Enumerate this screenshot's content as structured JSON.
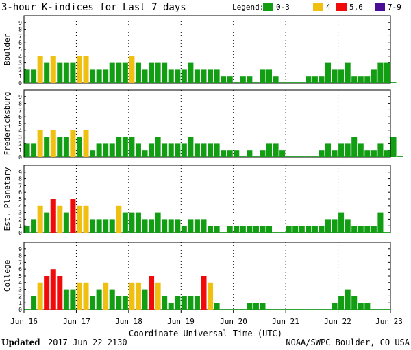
{
  "header": {
    "title": "3-hour K-indices for Last 7 days",
    "legend_label": "Legend:",
    "legend": [
      {
        "label": "0-3",
        "color": "#129e12"
      },
      {
        "label": "4",
        "color": "#f0c010"
      },
      {
        "label": "5,6",
        "color": "#f00a0a"
      },
      {
        "label": "7-9",
        "color": "#4b0c96"
      }
    ]
  },
  "footer": {
    "updated_label": "Updated",
    "updated_value": "2017 Jun 22 2130",
    "credit": "NOAA/SWPC Boulder, CO USA"
  },
  "chart_data": [
    {
      "type": "bar",
      "ylabel": "Boulder",
      "ylim": [
        0,
        9
      ],
      "values": [
        2,
        2,
        4,
        3,
        4,
        3,
        3,
        3,
        4,
        4,
        2,
        2,
        2,
        3,
        3,
        3,
        4,
        3,
        2,
        3,
        3,
        3,
        2,
        2,
        2,
        3,
        2,
        2,
        2,
        2,
        1,
        1,
        0,
        1,
        1,
        0,
        2,
        2,
        1,
        0,
        0,
        0,
        0,
        1,
        1,
        1,
        3,
        2,
        2,
        3,
        1,
        1,
        1,
        2,
        3,
        3,
        0
      ]
    },
    {
      "type": "bar",
      "ylabel": "Fredericksburg",
      "ylim": [
        0,
        9
      ],
      "values": [
        2,
        2,
        4,
        3,
        4,
        3,
        3,
        4,
        3,
        4,
        1,
        2,
        2,
        2,
        3,
        3,
        3,
        2,
        1,
        2,
        3,
        2,
        2,
        2,
        2,
        3,
        2,
        2,
        2,
        2,
        1,
        1,
        1,
        0,
        1,
        0,
        1,
        2,
        2,
        1,
        0,
        0,
        0,
        0,
        0,
        1,
        2,
        1,
        2,
        2,
        3,
        2,
        1,
        1,
        2,
        1,
        3,
        0
      ]
    },
    {
      "type": "bar",
      "ylabel": "Est. Planetary",
      "ylim": [
        0,
        9
      ],
      "values": [
        1,
        2,
        4,
        3,
        5,
        4,
        3,
        5,
        4,
        4,
        2,
        2,
        2,
        2,
        4,
        3,
        3,
        3,
        2,
        2,
        3,
        2,
        2,
        2,
        1,
        2,
        2,
        2,
        1,
        1,
        0,
        1,
        1,
        1,
        1,
        1,
        1,
        1,
        0,
        0,
        1,
        1,
        1,
        1,
        1,
        1,
        2,
        2,
        3,
        2,
        1,
        1,
        1,
        1,
        3,
        0
      ]
    },
    {
      "type": "bar",
      "ylabel": "College",
      "ylim": [
        0,
        9
      ],
      "values": [
        0,
        2,
        4,
        5,
        6,
        5,
        3,
        3,
        4,
        4,
        2,
        3,
        4,
        3,
        2,
        2,
        4,
        4,
        3,
        5,
        4,
        2,
        1,
        2,
        2,
        2,
        2,
        5,
        4,
        1,
        0,
        0,
        0,
        0,
        1,
        1,
        1,
        0,
        0,
        0,
        0,
        0,
        0,
        0,
        0,
        0,
        0,
        1,
        2,
        3,
        2,
        1,
        1,
        0,
        0,
        0
      ]
    }
  ],
  "axis": {
    "yticks": [
      "0",
      "1",
      "2",
      "3",
      "4",
      "5",
      "6",
      "7",
      "8",
      "9"
    ],
    "xticks": [
      "Jun 16",
      "Jun 17",
      "Jun 18",
      "Jun 19",
      "Jun 20",
      "Jun 21",
      "Jun 22",
      "Jun 23"
    ],
    "xlabel": "Coordinate Universal Time (UTC)"
  }
}
